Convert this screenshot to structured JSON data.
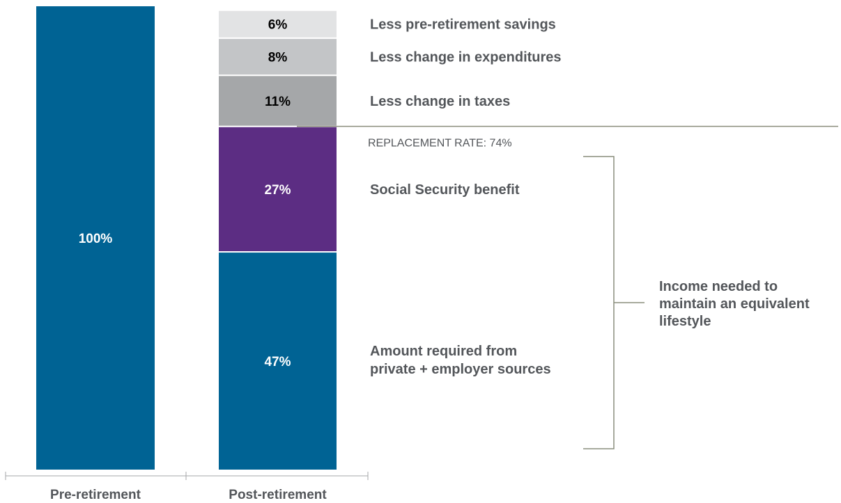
{
  "chart_data": {
    "type": "bar",
    "stacked": true,
    "title": "",
    "xlabel": "",
    "ylabel": "",
    "ylim": [
      0,
      100
    ],
    "grid": false,
    "categories": [
      "Pre-retirement",
      "Post-retirement"
    ],
    "series": [
      {
        "values": [
          100,
          47
        ],
        "labels": [
          "100%",
          "47%"
        ],
        "color": "#006394",
        "label_color": "#ffffff"
      },
      {
        "values": [
          0,
          27
        ],
        "labels": [
          "",
          "27%"
        ],
        "color": "#5c2d83",
        "label_color": "#ffffff"
      },
      {
        "values": [
          0,
          11
        ],
        "labels": [
          "",
          "11%"
        ],
        "color": "#a5a7a9",
        "label_color": "#000000"
      },
      {
        "values": [
          0,
          8
        ],
        "labels": [
          "",
          "8%"
        ],
        "color": "#c3c5c7",
        "label_color": "#000000"
      },
      {
        "values": [
          0,
          6
        ],
        "labels": [
          "",
          "6%"
        ],
        "color": "#e2e3e4",
        "label_color": "#000000"
      }
    ],
    "segment_annotations": [
      {
        "text": [
          "Amount required from",
          "private + employer sources"
        ]
      },
      {
        "text": [
          "Social Security benefit"
        ]
      },
      {
        "text": [
          "Less change in taxes"
        ]
      },
      {
        "text": [
          "Less change in expenditures"
        ]
      },
      {
        "text": [
          "Less pre-retirement savings"
        ]
      }
    ],
    "replacement_rate": {
      "label": "REPLACEMENT RATE: 74%",
      "value": 74
    },
    "bracket": {
      "text": [
        "Income needed to",
        "maintain an equivalent",
        "lifestyle"
      ]
    }
  }
}
